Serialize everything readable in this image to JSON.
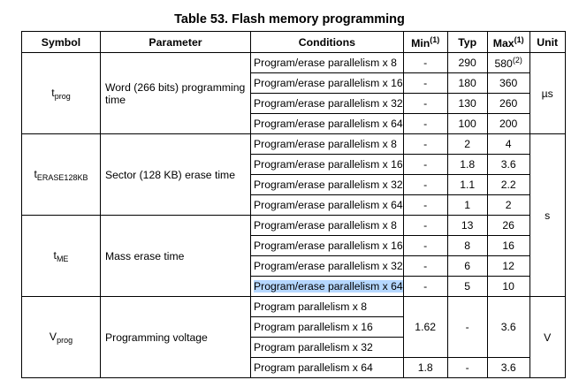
{
  "title": "Table 53. Flash memory programming",
  "headers": {
    "symbol": "Symbol",
    "parameter": "Parameter",
    "conditions": "Conditions",
    "min": "Min",
    "min_note": "(1)",
    "typ": "Typ",
    "max": "Max",
    "max_note": "(1)",
    "unit": "Unit"
  },
  "groups": {
    "tprog": {
      "symbol_main": "t",
      "symbol_sub": "prog",
      "parameter": "Word (266 bits) programming time",
      "unit": "µs",
      "rows": [
        {
          "condition": "Program/erase parallelism x 8",
          "min": "-",
          "typ": "290",
          "max": "580",
          "max_note": "(2)"
        },
        {
          "condition": "Program/erase parallelism x 16",
          "min": "-",
          "typ": "180",
          "max": "360"
        },
        {
          "condition": "Program/erase parallelism x 32",
          "min": "-",
          "typ": "130",
          "max": "260"
        },
        {
          "condition": "Program/erase parallelism x 64",
          "min": "-",
          "typ": "100",
          "max": "200"
        }
      ]
    },
    "terase": {
      "symbol_main": "t",
      "symbol_sub": "ERASE128KB",
      "parameter": "Sector (128 KB) erase time",
      "unit": "s",
      "rows": [
        {
          "condition": "Program/erase parallelism x 8",
          "min": "-",
          "typ": "2",
          "max": "4"
        },
        {
          "condition": "Program/erase parallelism x 16",
          "min": "-",
          "typ": "1.8",
          "max": "3.6"
        },
        {
          "condition": "Program/erase parallelism x 32",
          "min": "-",
          "typ": "1.1",
          "max": "2.2"
        },
        {
          "condition": "Program/erase parallelism x 64",
          "min": "-",
          "typ": "1",
          "max": "2"
        }
      ]
    },
    "tme": {
      "symbol_main": "t",
      "symbol_sub": "ME",
      "parameter": "Mass erase time",
      "rows": [
        {
          "condition": "Program/erase parallelism x 8",
          "min": "-",
          "typ": "13",
          "max": "26"
        },
        {
          "condition": "Program/erase parallelism x 16",
          "min": "-",
          "typ": "8",
          "max": "16"
        },
        {
          "condition": "Program/erase parallelism x 32",
          "min": "-",
          "typ": "6",
          "max": "12"
        },
        {
          "condition": "Program/erase parallelism x 64",
          "min": "-",
          "typ": "5",
          "max": "10"
        }
      ]
    },
    "vprog": {
      "symbol_main": "V",
      "symbol_sub": "prog",
      "parameter": "Programming voltage",
      "unit": "V",
      "rows": [
        {
          "condition": "Program parallelism x 8"
        },
        {
          "condition": "Program parallelism x 16"
        },
        {
          "condition": "Program parallelism x 32"
        },
        {
          "condition": "Program parallelism x 64"
        }
      ],
      "upper_min": "1.62",
      "upper_typ": "-",
      "upper_max": "3.6",
      "lower_min": "1.8",
      "lower_typ": "-",
      "lower_max": "3.6"
    }
  },
  "highlight_color": "#b5d7ff"
}
